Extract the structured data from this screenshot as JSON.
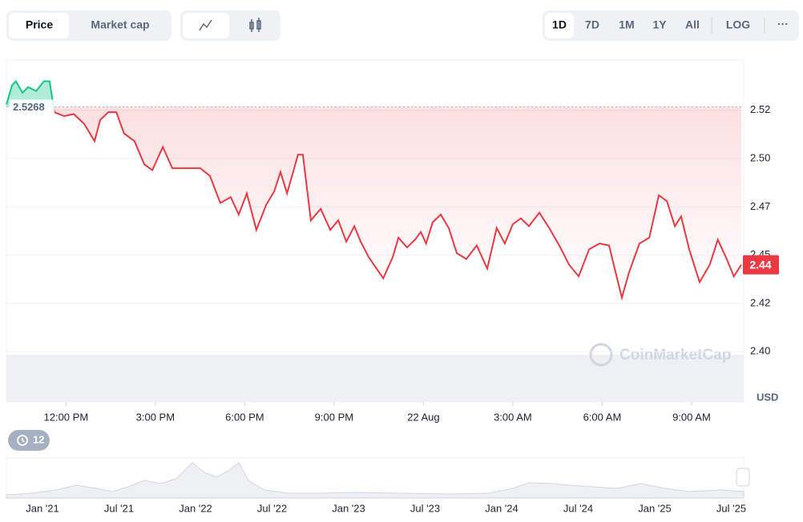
{
  "toolbar": {
    "series_tabs": [
      "Price",
      "Market cap"
    ],
    "ranges": [
      "1D",
      "7D",
      "1M",
      "1Y",
      "All",
      "LOG"
    ],
    "more": "···"
  },
  "chart_data": {
    "type": "line",
    "x": [
      10.0,
      10.19,
      10.32,
      10.54,
      10.73,
      11.0,
      11.26,
      11.45,
      11.61,
      11.94,
      12.26,
      12.61,
      12.96,
      13.15,
      13.42,
      13.69,
      13.95,
      14.3,
      14.63,
      14.9,
      15.25,
      15.57,
      15.92,
      16.24,
      16.51,
      16.83,
      17.18,
      17.53,
      17.8,
      18.07,
      18.39,
      18.72,
      18.99,
      19.2,
      19.42,
      19.79,
      19.95,
      20.22,
      20.55,
      20.87,
      21.14,
      21.41,
      21.68,
      21.89,
      22.16,
      22.65,
      22.97,
      23.16,
      23.45,
      23.72,
      23.91,
      24.09,
      24.31,
      24.58,
      24.85,
      25.12,
      25.44,
      25.79,
      26.14,
      26.46,
      26.73,
      27.0,
      27.27,
      27.54,
      27.89,
      28.22,
      28.56,
      28.89,
      29.21,
      29.56,
      29.91,
      30.23,
      30.45,
      30.66,
      30.9,
      31.25,
      31.58,
      31.9,
      32.17,
      32.44,
      32.65,
      32.92,
      33.27,
      33.61,
      33.88,
      34.18,
      34.42,
      34.67
    ],
    "values": [
      2.528,
      2.538,
      2.54,
      2.534,
      2.537,
      2.535,
      2.54,
      2.54,
      2.524,
      2.522,
      2.523,
      2.518,
      2.509,
      2.52,
      2.524,
      2.524,
      2.513,
      2.509,
      2.497,
      2.494,
      2.506,
      2.495,
      2.495,
      2.495,
      2.495,
      2.491,
      2.477,
      2.48,
      2.471,
      2.482,
      2.463,
      2.476,
      2.483,
      2.493,
      2.482,
      2.502,
      2.502,
      2.468,
      2.474,
      2.463,
      2.468,
      2.457,
      2.465,
      2.457,
      2.449,
      2.438,
      2.449,
      2.459,
      2.454,
      2.458,
      2.462,
      2.456,
      2.467,
      2.471,
      2.464,
      2.451,
      2.448,
      2.455,
      2.443,
      2.464,
      2.456,
      2.466,
      2.469,
      2.465,
      2.472,
      2.464,
      2.455,
      2.445,
      2.439,
      2.453,
      2.456,
      2.455,
      2.441,
      2.428,
      2.441,
      2.456,
      2.459,
      2.481,
      2.478,
      2.465,
      2.47,
      2.453,
      2.436,
      2.445,
      2.458,
      2.448,
      2.439,
      2.445
    ],
    "baseline": 2.5268,
    "color_up": "#16c784",
    "color_down": "#ea3943",
    "current_price_label": "2.44",
    "xlim": [
      10,
      34.75
    ],
    "xticks": [
      {
        "value": 12,
        "label": "12:00 PM"
      },
      {
        "value": 15,
        "label": "3:00 PM"
      },
      {
        "value": 18,
        "label": "6:00 PM"
      },
      {
        "value": 21,
        "label": "9:00 PM"
      },
      {
        "value": 24,
        "label": "22 Aug"
      },
      {
        "value": 27,
        "label": "3:00 AM"
      },
      {
        "value": 30,
        "label": "6:00 AM"
      },
      {
        "value": 33,
        "label": "9:00 AM"
      }
    ],
    "ylim": [
      2.374,
      2.551
    ],
    "yticks": [
      {
        "value": 2.4,
        "label": "2.40"
      },
      {
        "value": 2.425,
        "label": "2.42"
      },
      {
        "value": 2.45,
        "label": "2.45"
      },
      {
        "value": 2.475,
        "label": "2.47"
      },
      {
        "value": 2.5,
        "label": "2.50"
      },
      {
        "value": 2.525,
        "label": "2.52"
      }
    ],
    "grid": true,
    "unit": "USD",
    "watermark": "CoinMarketCap"
  },
  "history_badge": "12",
  "navigator": {
    "labels": [
      "Jan '21",
      "Jul '21",
      "Jan '22",
      "Jul '22",
      "Jan '23",
      "Jul '23",
      "Jan '24",
      "Jul '24",
      "Jan '25",
      "Jul '25"
    ]
  }
}
